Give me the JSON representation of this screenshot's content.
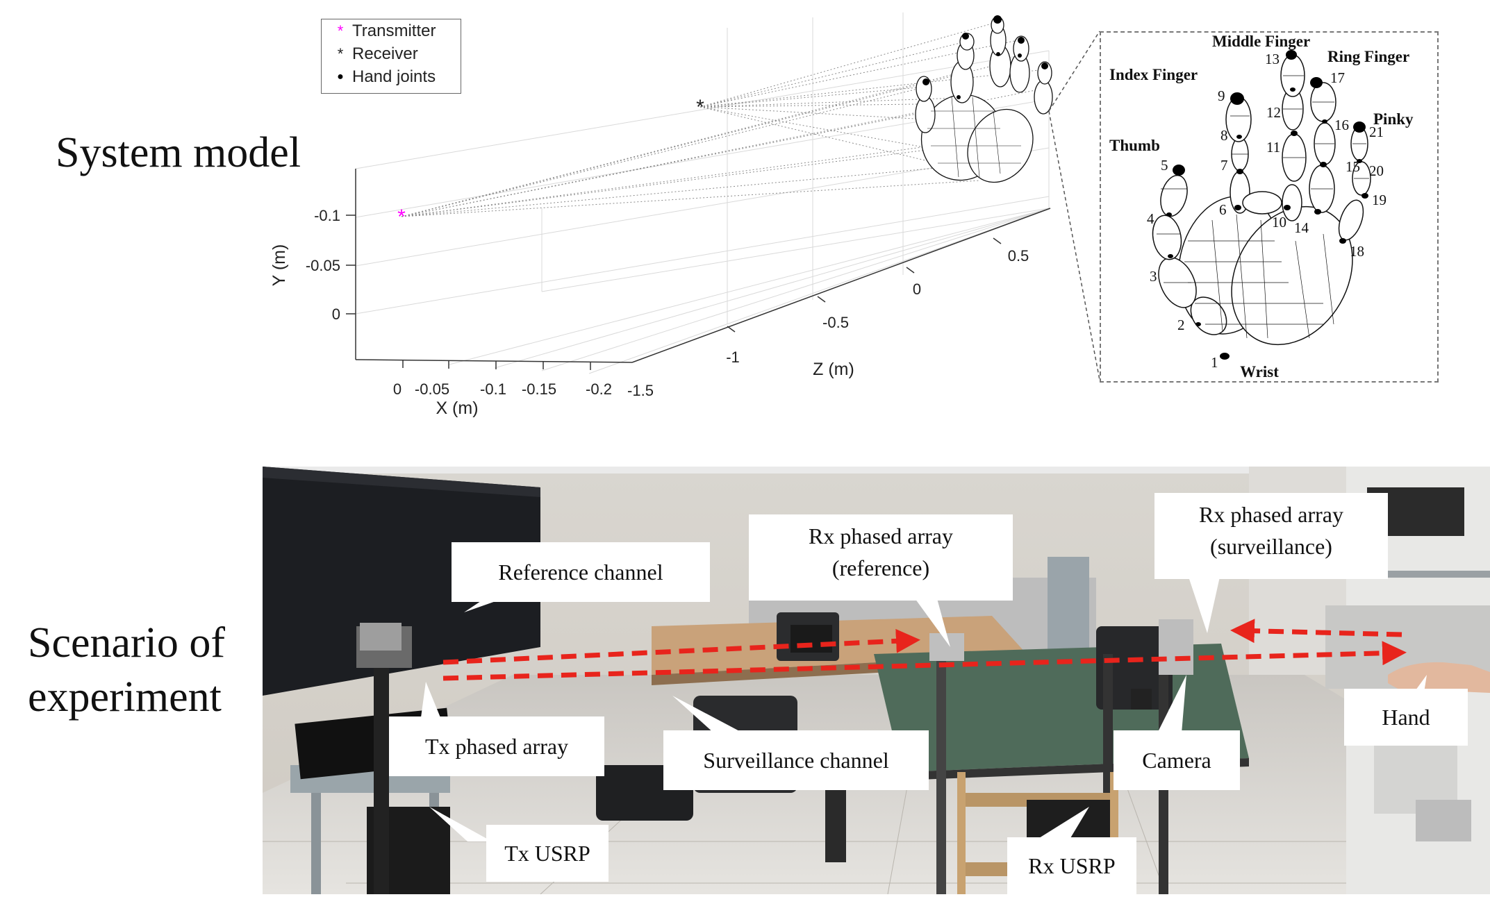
{
  "system_model": {
    "title": "System model",
    "legend": {
      "items": [
        {
          "marker": "*",
          "color": "#ff00ff",
          "label": "Transmitter"
        },
        {
          "marker": "*",
          "color": "#222222",
          "label": "Receiver"
        },
        {
          "marker": "●",
          "color": "#000000",
          "label": "Hand joints"
        }
      ]
    },
    "axes": {
      "y_label": "Y (m)",
      "y_ticks": [
        "-0.1",
        "-0.05",
        "0"
      ],
      "x_label": "X (m)",
      "x_ticks": [
        "0",
        "-0.05",
        "-0.1",
        "-0.15",
        "-0.2"
      ],
      "z_label": "Z (m)",
      "z_ticks": [
        "-1.5",
        "-1",
        "-0.5",
        "0",
        "0.5"
      ]
    },
    "hand_model": {
      "finger_labels": {
        "thumb": "Thumb",
        "index": "Index Finger",
        "middle": "Middle Finger",
        "ring": "Ring Finger",
        "pinky": "Pinky",
        "wrist": "Wrist"
      },
      "joint_numbers": [
        "1",
        "2",
        "3",
        "4",
        "5",
        "6",
        "7",
        "8",
        "9",
        "10",
        "11",
        "12",
        "13",
        "14",
        "15",
        "16",
        "17",
        "18",
        "19",
        "20",
        "21"
      ]
    }
  },
  "experiment": {
    "title_line1": "Scenario of",
    "title_line2": "experiment",
    "callouts": {
      "reference_channel": "Reference channel",
      "rx_reference_line1": "Rx phased array",
      "rx_reference_line2": "(reference)",
      "rx_surveillance_line1": "Rx phased array",
      "rx_surveillance_line2": "(surveillance)",
      "tx_phased_array": "Tx phased array",
      "surveillance_channel": "Surveillance channel",
      "camera": "Camera",
      "hand": "Hand",
      "tx_usrp": "Tx USRP",
      "rx_usrp": "Rx USRP"
    },
    "colors": {
      "channel_arrow": "#e8241c"
    }
  }
}
